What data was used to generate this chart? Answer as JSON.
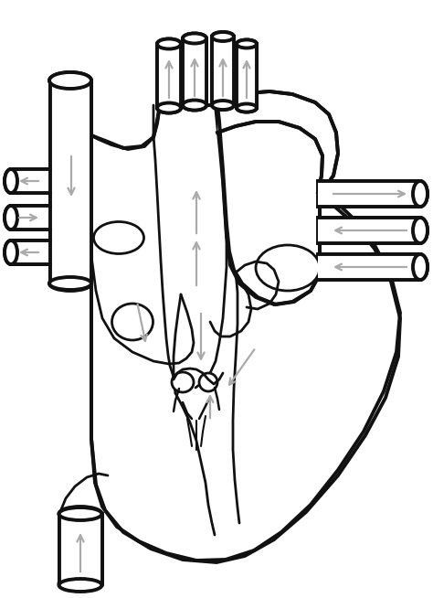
{
  "bg_color": "#ffffff",
  "lc": "#111111",
  "ac": "#aaaaaa",
  "lw": 2.8,
  "lw2": 2.0,
  "figsize": [
    4.74,
    6.54
  ],
  "dpi": 100
}
